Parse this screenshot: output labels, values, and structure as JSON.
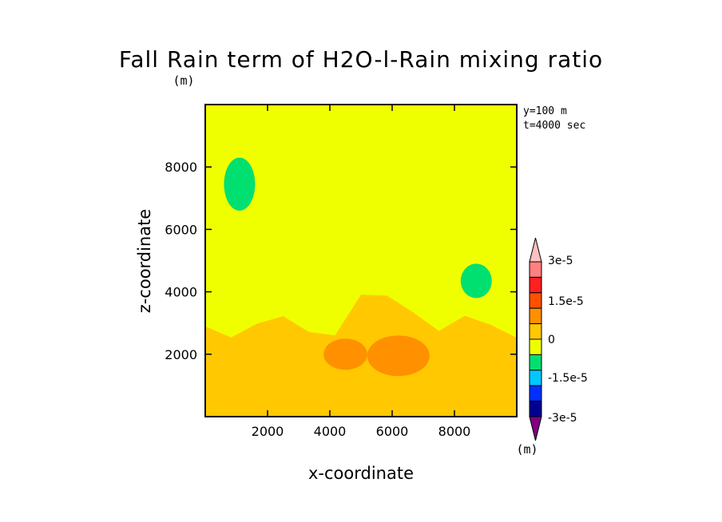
{
  "chart_data": {
    "type": "heatmap",
    "title": "Fall Rain term of H2O-l-Rain mixing ratio",
    "title_units": "(m)",
    "xlabel": "x-coordinate",
    "ylabel": "z-coordinate",
    "xlim": [
      0,
      10000
    ],
    "ylim": [
      0,
      10000
    ],
    "xticks": [
      "2000",
      "4000",
      "6000",
      "8000"
    ],
    "yticks": [
      "2000",
      "4000",
      "6000",
      "8000"
    ],
    "annotations": [
      "y=100 m",
      "t=4000 sec"
    ],
    "colorbar": {
      "units": "(m)",
      "tick_labels": [
        "3e-5",
        "1.5e-5",
        "0",
        "-1.5e-5",
        "-3e-5"
      ],
      "levels": [
        {
          "value": -3e-05,
          "color": "#800080"
        },
        {
          "value": -2.5e-05,
          "color": "#000090"
        },
        {
          "value": -2e-05,
          "color": "#0030ff"
        },
        {
          "value": -1.5e-05,
          "color": "#00c8ff"
        },
        {
          "value": -1e-05,
          "color": "#00e070"
        },
        {
          "value": -5e-06,
          "color": "#f0ff00"
        },
        {
          "value": 0,
          "color": "#ffc800"
        },
        {
          "value": 5e-06,
          "color": "#ff9000"
        },
        {
          "value": 1e-05,
          "color": "#ff5000"
        },
        {
          "value": 1.5e-05,
          "color": "#ff2020"
        },
        {
          "value": 2e-05,
          "color": "#ff8080"
        },
        {
          "value": 2.5e-05,
          "color": "#ffc0c0"
        }
      ]
    },
    "field_regions": [
      {
        "level": 0,
        "x": [
          0,
          10000
        ],
        "z": [
          0,
          10000
        ],
        "shape": "background"
      },
      {
        "level": 0.6,
        "x": [
          0,
          10000
        ],
        "z": [
          0,
          3400
        ],
        "shape": "lower-band"
      },
      {
        "level": 1,
        "x": [
          3800,
          5200
        ],
        "z": [
          1500,
          2500
        ],
        "shape": "blob"
      },
      {
        "level": 1,
        "x": [
          5200,
          7200
        ],
        "z": [
          1300,
          2600
        ],
        "shape": "blob"
      },
      {
        "level": -1,
        "x": [
          600,
          1600
        ],
        "z": [
          6600,
          8300
        ],
        "shape": "blob"
      },
      {
        "level": -1,
        "x": [
          8200,
          9200
        ],
        "z": [
          3800,
          4900
        ],
        "shape": "blob"
      }
    ]
  }
}
